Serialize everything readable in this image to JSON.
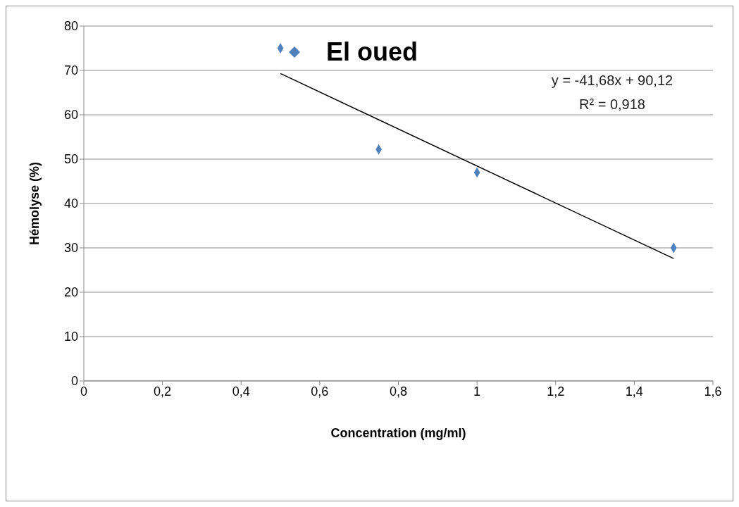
{
  "chart_data": {
    "type": "scatter",
    "xlabel": "Concentration (mg/ml)",
    "ylabel": "Hémolyse (%)",
    "x": [
      0.5,
      0.75,
      1.0,
      1.5
    ],
    "series": [
      {
        "name": "El oued",
        "color": "#4f81bd",
        "values": [
          75,
          52.2,
          47,
          30
        ],
        "marker": "diamond"
      },
      {
        "type": "line",
        "color": "#000000",
        "x": [
          0.5,
          1.5
        ],
        "values": [
          69.3,
          27.6
        ],
        "marker": "none"
      }
    ],
    "xlim": [
      0,
      1.6
    ],
    "xticks": [
      0,
      {
        "value": 0.2,
        "label": "0,2"
      },
      {
        "value": 0.4,
        "label": "0,4"
      },
      {
        "value": 0.6,
        "label": "0,6"
      },
      {
        "value": 0.8,
        "label": "0,8"
      },
      1,
      {
        "value": 1.2,
        "label": "1,2"
      },
      {
        "value": 1.4,
        "label": "1,4"
      },
      {
        "value": 1.6,
        "label": "1,6"
      }
    ],
    "ylim": [
      0,
      80
    ],
    "yticks": [
      0,
      10,
      20,
      30,
      40,
      50,
      60,
      70,
      80
    ],
    "grid": "y",
    "legend": "top",
    "annotations": [
      "y = -41,68x + 90,12",
      "R² = 0,918"
    ]
  }
}
